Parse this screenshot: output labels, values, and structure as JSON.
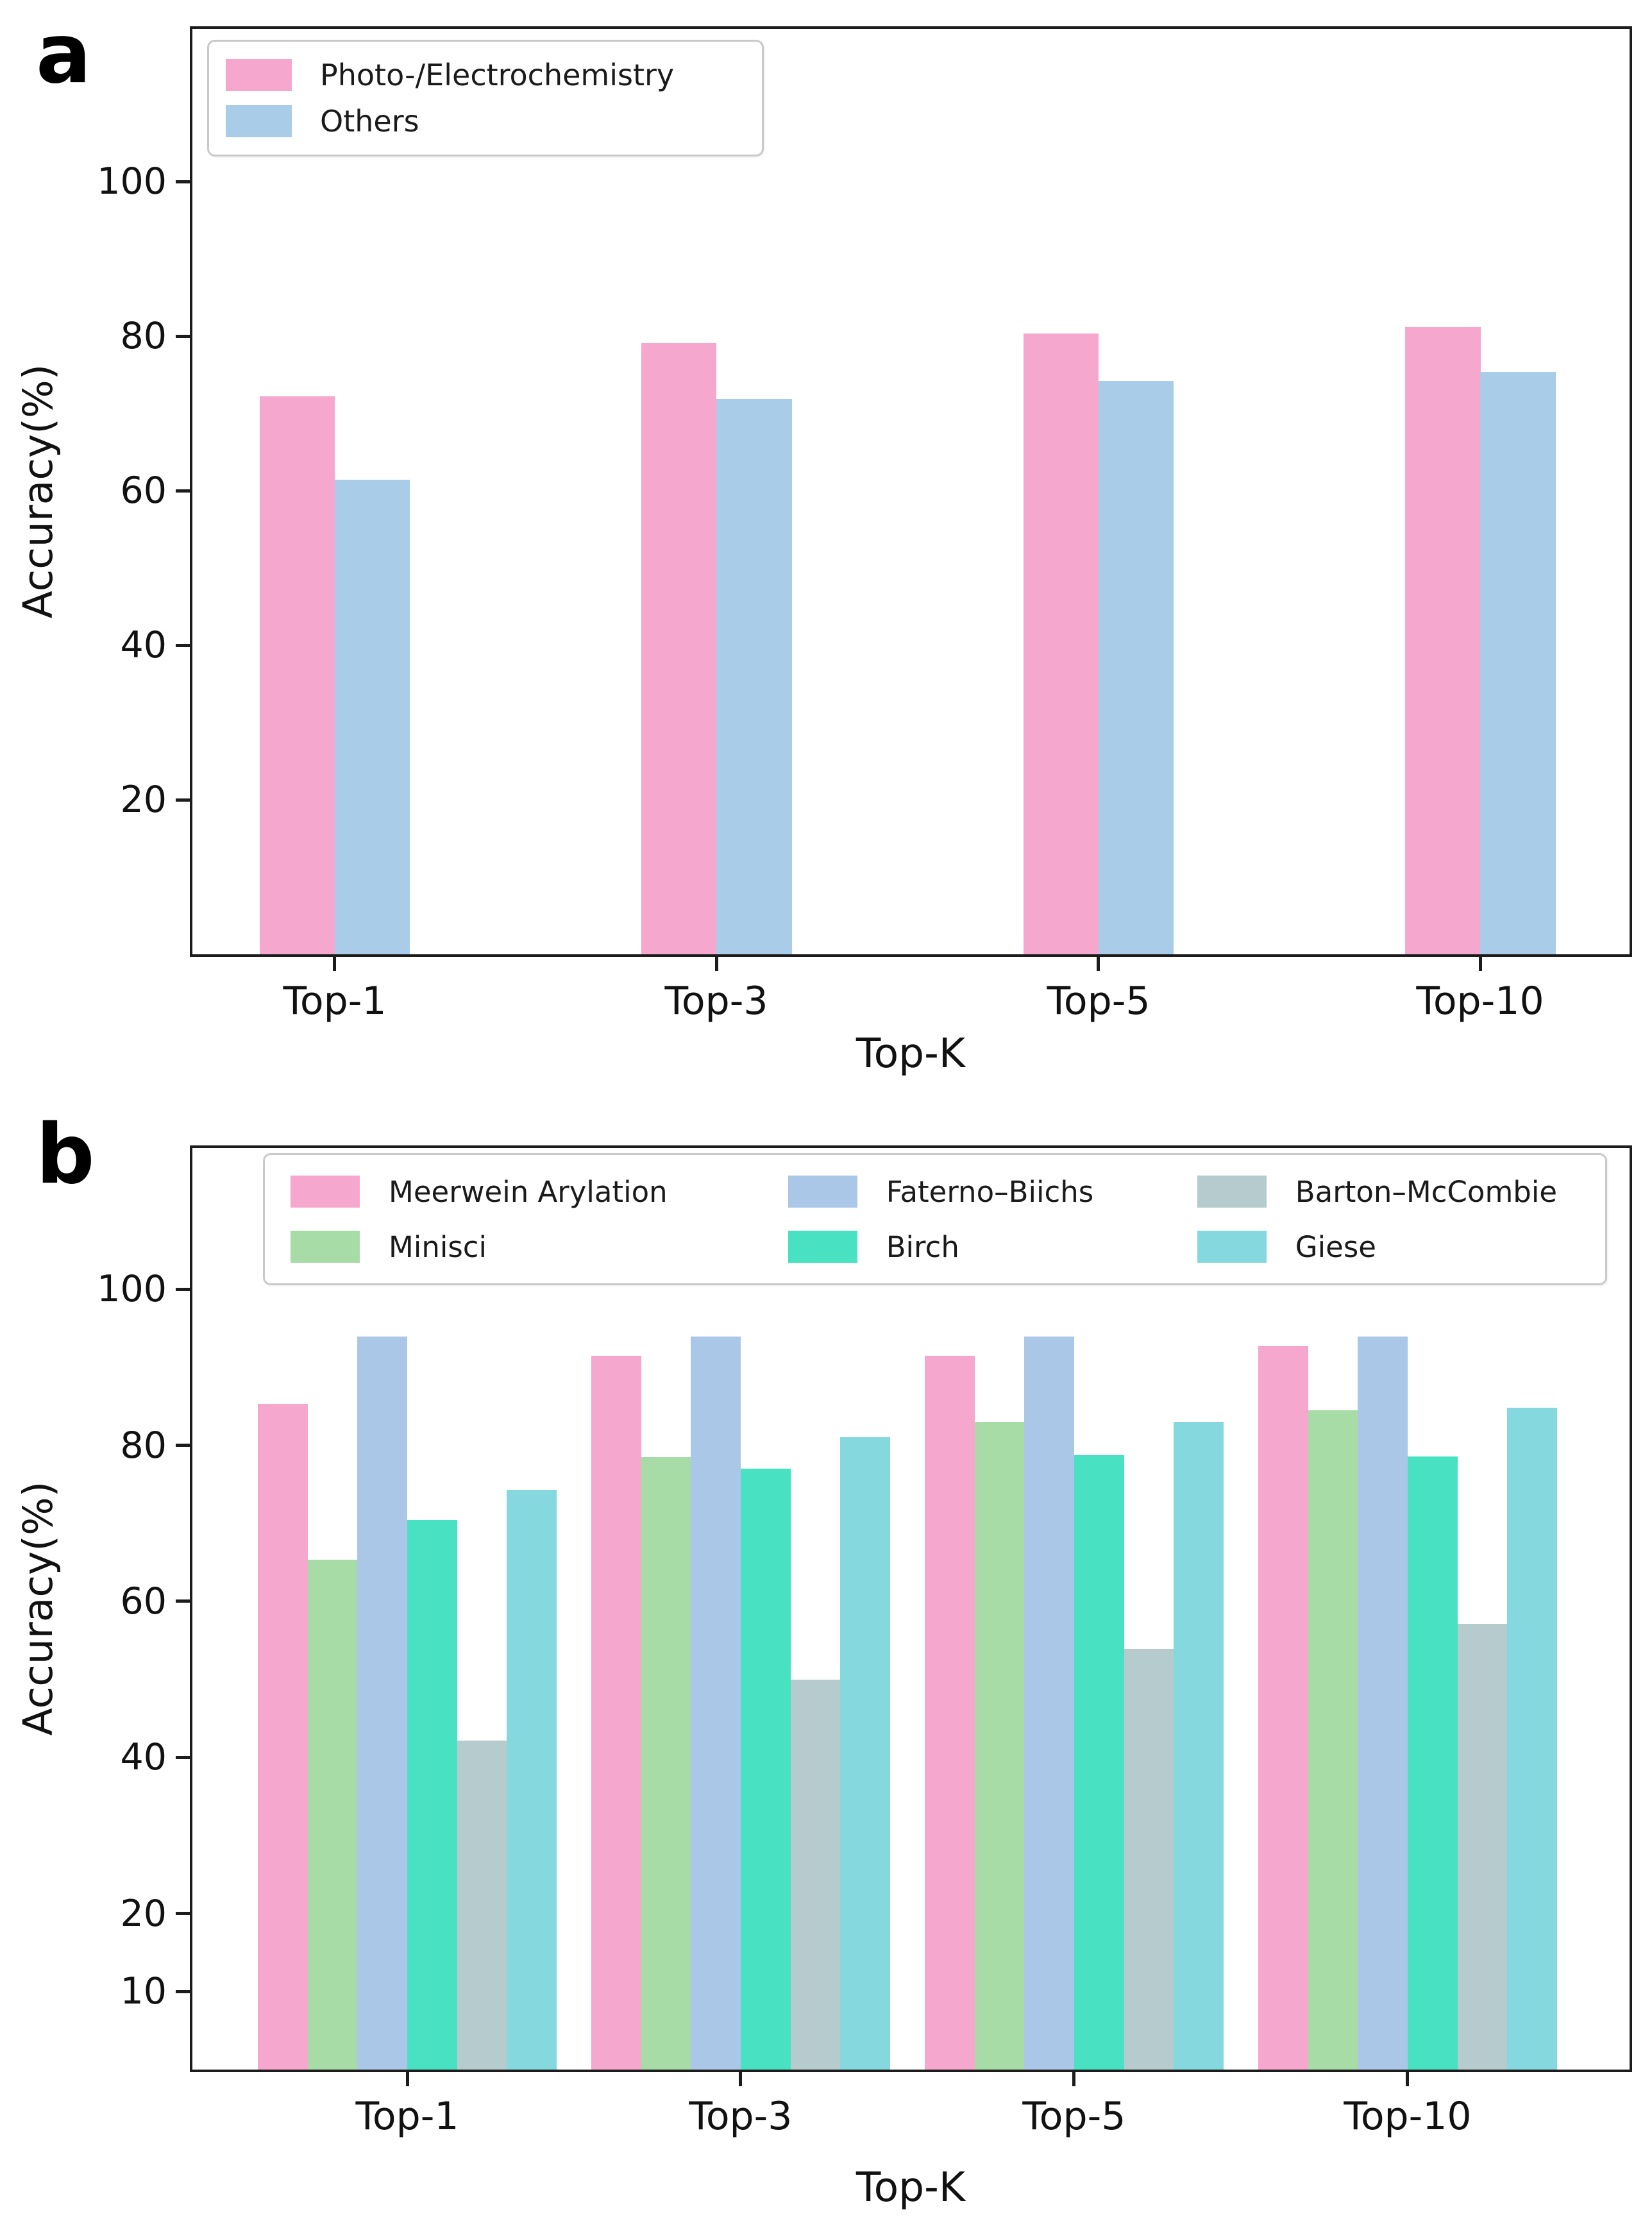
{
  "figure_background": "#ffffff",
  "spine_color": "#1c1c1c",
  "chart_data": [
    {
      "type": "bar",
      "panel_label": "a",
      "title": "",
      "xlabel": "Top-K",
      "ylabel": "Accuracy(%)",
      "categories": [
        "Top-1",
        "Top-3",
        "Top-5",
        "Top-10"
      ],
      "yticks": [
        20,
        40,
        60,
        80,
        100
      ],
      "ylim": [
        0,
        119.8
      ],
      "grid": false,
      "legend_position": "upper left",
      "series": [
        {
          "name": "Photo-/Electrochemistry",
          "color": "#F6A7CE",
          "values": [
            72.2,
            79.1,
            80.4,
            81.2
          ]
        },
        {
          "name": "Others",
          "color": "#A9CDE8",
          "values": [
            61.4,
            71.9,
            74.2,
            75.4
          ]
        }
      ]
    },
    {
      "type": "bar",
      "panel_label": "b",
      "title": "",
      "xlabel": "Top-K",
      "ylabel": "Accuracy(%)",
      "categories": [
        "Top-1",
        "Top-3",
        "Top-5",
        "Top-10"
      ],
      "yticks": [
        10,
        20,
        40,
        60,
        80,
        100
      ],
      "ylim": [
        0,
        118.1
      ],
      "grid": false,
      "legend_position": "upper center",
      "series": [
        {
          "name": "Meerwein Arylation",
          "color": "#F6A7CE",
          "values": [
            85.3,
            91.5,
            91.5,
            92.7
          ]
        },
        {
          "name": "Minisci",
          "color": "#A8DCA6",
          "values": [
            65.3,
            78.5,
            83.0,
            84.5
          ]
        },
        {
          "name": "Faterno–Biichs",
          "color": "#AAC7E8",
          "values": [
            93.9,
            93.9,
            93.9,
            93.9
          ]
        },
        {
          "name": "Birch",
          "color": "#48E2C2",
          "values": [
            70.4,
            77.0,
            78.7,
            78.6
          ]
        },
        {
          "name": "Barton–McCombie",
          "color": "#B5CBCD",
          "values": [
            42.2,
            50.0,
            53.9,
            57.1
          ]
        },
        {
          "name": "Giese",
          "color": "#85D9DE",
          "values": [
            74.3,
            81.0,
            83.0,
            84.8
          ]
        }
      ]
    }
  ]
}
